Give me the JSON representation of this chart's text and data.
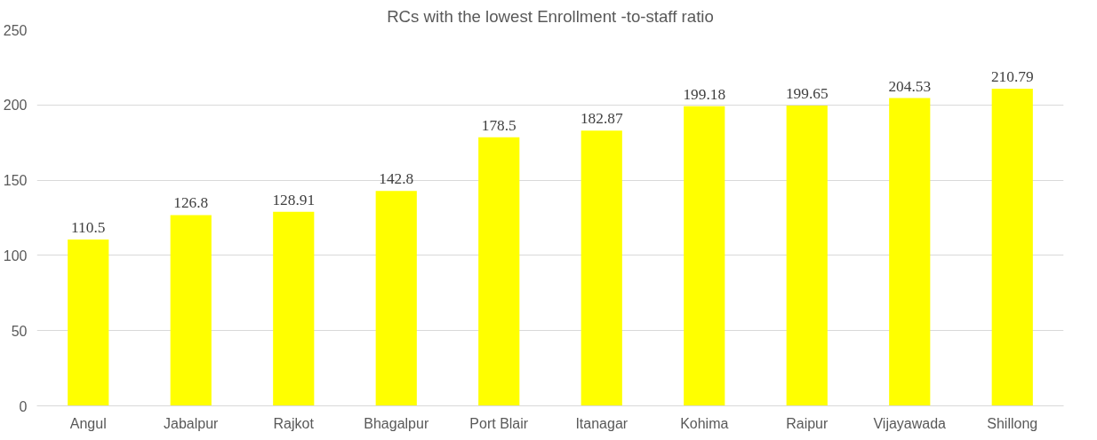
{
  "chart_data": {
    "type": "bar",
    "title": "RCs with the lowest Enrollment -to-staff ratio",
    "categories": [
      "Angul",
      "Jabalpur",
      "Rajkot",
      "Bhagalpur",
      "Port Blair",
      "Itanagar",
      "Kohima",
      "Raipur",
      "Vijayawada",
      "Shillong"
    ],
    "values": [
      110.5,
      126.8,
      128.91,
      142.8,
      178.5,
      182.87,
      199.18,
      199.65,
      204.53,
      210.79
    ],
    "color": "#ffff00",
    "ylim": [
      0,
      250
    ],
    "yticks": [
      0,
      50,
      100,
      150,
      200,
      250
    ],
    "grid": "y",
    "data_labels": true
  }
}
